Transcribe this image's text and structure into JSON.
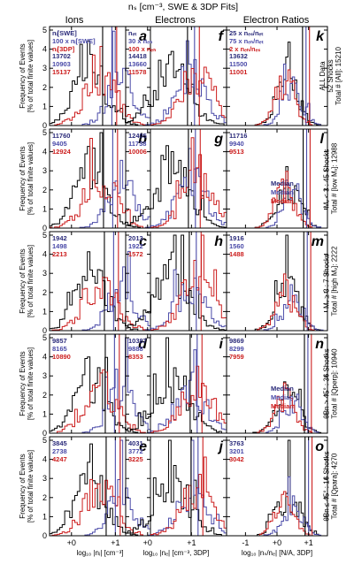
{
  "title": "nₛ [cm⁻³, SWE & 3DP Fits]",
  "colors": {
    "black": "#000000",
    "blue": "#4a4aa8",
    "red": "#cc1f1f",
    "navy": "#2b2b7a"
  },
  "columns": [
    "Ions",
    "Electrons",
    "Electron Ratios"
  ],
  "y_axis_label": [
    "Frequency of Events",
    "[% of total finite values]"
  ],
  "y_ticks": [
    "0",
    "1",
    "2",
    "3",
    "4",
    "5"
  ],
  "x_ticks": [
    [
      "+0",
      "+1"
    ],
    [
      "+0",
      "+1"
    ],
    [
      "-1",
      "+0",
      "+1"
    ]
  ],
  "x_labels": [
    "log₁₀ |nᵢ| [cm⁻³]",
    "log₁₀ |nₑ| [cm⁻³, 3DP]",
    "log₁₀ |nₛ/nₑ| [N/A, 3DP]"
  ],
  "series_labels": [
    [
      "nᵢ[SWE]",
      "100 x nᵢ[SWE]",
      "nᵢ[3DP]"
    ],
    [
      "nₑₜ",
      "30 x nₑₕ",
      "100 x nₑₕ"
    ],
    [
      "25 x nₑₛ/nₑₜ",
      "75 x nₑₕ/nₑₜ",
      "2 x nₑₕ/nₑₛ"
    ]
  ],
  "median_label": "Median",
  "row_labels": [
    [
      "ALL Data",
      "52 Shocks",
      "Total # [All]: 15210"
    ],
    [
      "Mᵥ < 3 : 45 Shocks",
      "Total # [low Mᵥ]: 12988"
    ],
    [
      "Mᵥ ≥ 3 : 7 Shocks",
      "Total # [high Mᵥ]: 2222"
    ],
    [
      "θBn > 45° : 36 Shocks",
      "Total # [Qperp]: 10940"
    ],
    [
      "θBn ≤ 45° : 16 Shocks",
      "Total # [Qpara]: 4270"
    ]
  ],
  "panel_letters": [
    [
      "a",
      "f",
      "k"
    ],
    [
      "b",
      "g",
      "l"
    ],
    [
      "c",
      "h",
      "m"
    ],
    [
      "d",
      "i",
      "n"
    ],
    [
      "e",
      "j",
      "o"
    ]
  ],
  "panel_counts": [
    [
      [
        "13702",
        "10903",
        "15137"
      ],
      [
        "14418",
        "13660",
        "11578"
      ],
      [
        "13632",
        "11500",
        "11001"
      ]
    ],
    [
      [
        "11760",
        "9405",
        "12924"
      ],
      [
        "12405",
        "11738",
        "10006"
      ],
      [
        "11716",
        "9940",
        "9513"
      ]
    ],
    [
      [
        "1942",
        "1498",
        "2213"
      ],
      [
        "2013",
        "1922",
        "1572"
      ],
      [
        "1916",
        "1560",
        "1488"
      ]
    ],
    [
      [
        "9857",
        "8165",
        "10890"
      ],
      [
        "10387",
        "9888",
        "8353"
      ],
      [
        "9869",
        "8299",
        "7959"
      ]
    ],
    [
      [
        "3845",
        "2738",
        "4247"
      ],
      [
        "4031",
        "3772",
        "3225"
      ],
      [
        "3763",
        "3201",
        "3042"
      ]
    ]
  ],
  "chart_data": {
    "type": "histogram-grid",
    "title": "nₛ [cm⁻³, SWE & 3DP Fits]",
    "ylabel": "Frequency of Events [% of total finite values]",
    "ylim": [
      0,
      5
    ],
    "columns": [
      {
        "name": "Ions",
        "xlabel": "log₁₀ |nᵢ| [cm⁻³]",
        "xlim": [
          -0.5,
          1.8
        ],
        "ticks": [
          0,
          1
        ],
        "series": [
          "nᵢ[SWE]",
          "100 x nᵢ[SWE]",
          "nᵢ[3DP]"
        ],
        "centers": [
          0.45,
          1.15,
          0.65
        ],
        "widths": [
          0.35,
          0.3,
          0.35
        ]
      },
      {
        "name": "Electrons",
        "xlabel": "log₁₀ |nₑ| [cm⁻³, 3DP]",
        "xlim": [
          -0.5,
          1.8
        ],
        "ticks": [
          0,
          1
        ],
        "series": [
          "nₑₜ",
          "30 x nₑₕ",
          "100 x nₑₕ"
        ],
        "centers": [
          0.55,
          1.0,
          1.15
        ],
        "widths": [
          0.4,
          0.35,
          0.35
        ]
      },
      {
        "name": "Electron Ratios",
        "xlabel": "log₁₀ |nₛ/nₑ| [N/A, 3DP]",
        "xlim": [
          -1.6,
          1.6
        ],
        "ticks": [
          -1,
          0,
          1
        ],
        "series": [
          "25 x nₑₛ/nₑₜ",
          "75 x nₑₕ/nₑₜ",
          "2 x nₑₕ/nₑₛ"
        ],
        "centers": [
          0.35,
          0.5,
          0.25
        ],
        "widths": [
          0.35,
          0.3,
          0.3
        ]
      }
    ],
    "medians": {
      "Ions": [
        0.75,
        0.95,
        1.05
      ],
      "Electrons": [
        0.95,
        1.1,
        1.2
      ],
      "Electron Ratios": [
        0.85,
        0.95,
        1.05
      ]
    }
  }
}
